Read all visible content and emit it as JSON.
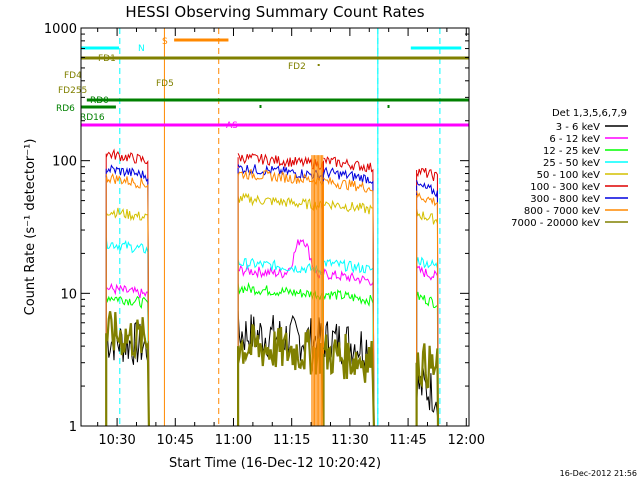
{
  "chart_data": {
    "type": "line",
    "title": "HESSI Observing Summary Count Rates",
    "xlabel": "Start Time (16-Dec-12 10:20:42)",
    "ylabel": "Count Rate (s⁻¹ detector⁻¹)",
    "yscale": "log",
    "ylim": [
      1,
      1000
    ],
    "xlim_minutes": [
      0,
      100
    ],
    "x_start_time": "10:20:42",
    "x_ticks": [
      {
        "label": "10:30",
        "t": 9.3
      },
      {
        "label": "10:45",
        "t": 24.3
      },
      {
        "label": "11:00",
        "t": 39.3
      },
      {
        "label": "11:15",
        "t": 54.3
      },
      {
        "label": "11:30",
        "t": 69.3
      },
      {
        "label": "11:45",
        "t": 84.3
      },
      {
        "label": "12:00",
        "t": 99.3
      }
    ],
    "y_ticks": [
      {
        "label": "1",
        "v": 1
      },
      {
        "label": "10",
        "v": 10
      },
      {
        "label": "100",
        "v": 100
      },
      {
        "label": "1000",
        "v": 1000
      }
    ],
    "legend_title": "Det 1,3,5,6,7,9",
    "legend_position": "right",
    "series": [
      {
        "name": "3 - 6 keV",
        "color": "#000000"
      },
      {
        "name": "6 - 12 keV",
        "color": "#ff00ff"
      },
      {
        "name": "12 - 25 keV",
        "color": "#00ff00"
      },
      {
        "name": "25 - 50 keV",
        "color": "#00ffff"
      },
      {
        "name": "50 - 100 keV",
        "color": "#d4c000"
      },
      {
        "name": "100 - 300 keV",
        "color": "#dd0000"
      },
      {
        "name": "300 - 800 keV",
        "color": "#0000dd"
      },
      {
        "name": "800 - 7000 keV",
        "color": "#ff8800"
      },
      {
        "name": "7000 - 20000 keV",
        "color": "#808000"
      }
    ],
    "segments": [
      {
        "t0": 6.5,
        "t1": 17.5,
        "values": [
          4.5,
          11,
          9.5,
          24,
          42,
          113,
          87,
          75,
          5
        ]
      },
      {
        "t0": 40.5,
        "t1": 62.5,
        "values": [
          5,
          15,
          11,
          17,
          52,
          106,
          88,
          80,
          4
        ]
      },
      {
        "t0": 62.5,
        "t1": 75.5,
        "values": [
          4.5,
          14,
          10,
          17,
          48,
          100,
          82,
          70,
          3.5
        ]
      },
      {
        "t0": 86.5,
        "t1": 92.0,
        "values": [
          2,
          15,
          9.5,
          18,
          40,
          85,
          65,
          55,
          3
        ]
      }
    ],
    "flags": [
      {
        "label": "N",
        "color": "#00ffff"
      },
      {
        "label": "S",
        "color": "#ff8800"
      },
      {
        "label": "FD1",
        "color": "#808000"
      },
      {
        "label": "FD2",
        "color": "#808000"
      },
      {
        "label": "FD4",
        "color": "#808000"
      },
      {
        "label": "FD5",
        "color": "#808000"
      },
      {
        "label": "FD255",
        "color": "#808000"
      },
      {
        "label": "RD0",
        "color": "#008000"
      },
      {
        "label": "RD6",
        "color": "#008000"
      },
      {
        "label": "RD16",
        "color": "#008000"
      },
      {
        "label": "AS",
        "color": "#ff00ff"
      }
    ],
    "footer_timestamp": "16-Dec-2012 21:56"
  }
}
